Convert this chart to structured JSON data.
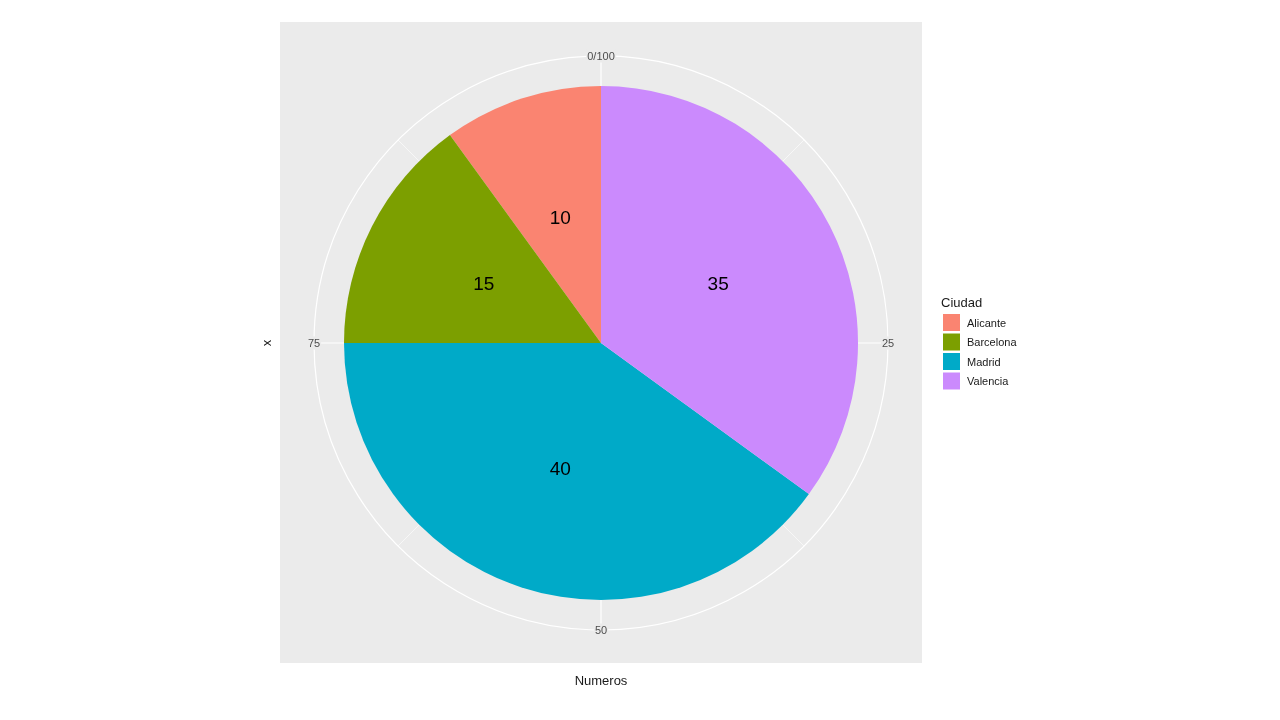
{
  "chart_data": {
    "type": "pie",
    "categories": [
      "Alicante",
      "Barcelona",
      "Madrid",
      "Valencia"
    ],
    "values": [
      10,
      15,
      40,
      35
    ],
    "colors": [
      "#fa8471",
      "#7c9f00",
      "#00aac8",
      "#cb8afd"
    ],
    "data_labels": true,
    "legend": "right",
    "legend_title": "Ciudad",
    "xlabel": "Numeros",
    "ylabel": "x",
    "annotations": [
      "0/100",
      "25",
      "50",
      "75"
    ],
    "grid": true
  }
}
